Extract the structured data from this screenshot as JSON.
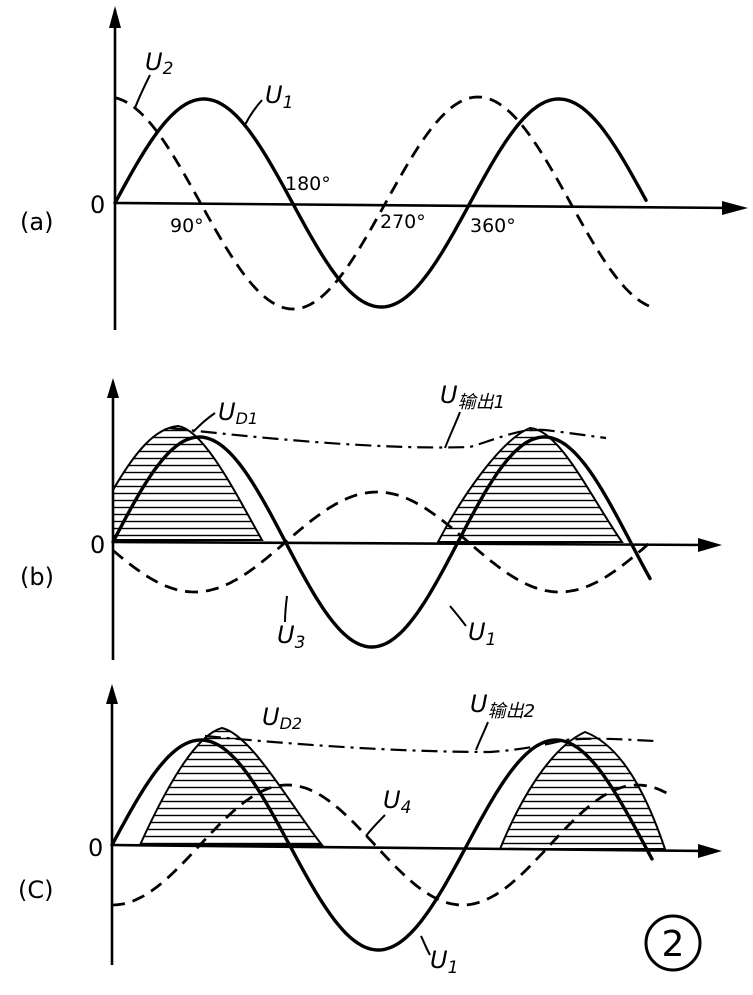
{
  "panels": [
    {
      "id": "a",
      "label": "(a)",
      "zero": "0",
      "curves": {
        "u1": "U",
        "u1_sub": "1",
        "u2": "U",
        "u2_sub": "2"
      },
      "angles": [
        "90°",
        "180°",
        "270°",
        "360°"
      ]
    },
    {
      "id": "b",
      "label": "(b)",
      "zero": "0",
      "curves": {
        "ud": "U",
        "ud_sub": "D1",
        "out": "U",
        "out_sub": "输出1",
        "u3": "U",
        "u3_sub": "3",
        "u1": "U",
        "u1_sub": "1"
      }
    },
    {
      "id": "c",
      "label": "(C)",
      "zero": "0",
      "curves": {
        "ud": "U",
        "ud_sub": "D2",
        "out": "U",
        "out_sub": "输出2",
        "u4": "U",
        "u4_sub": "4",
        "u1": "U",
        "u1_sub": "1"
      }
    }
  ],
  "figure_number": "2"
}
